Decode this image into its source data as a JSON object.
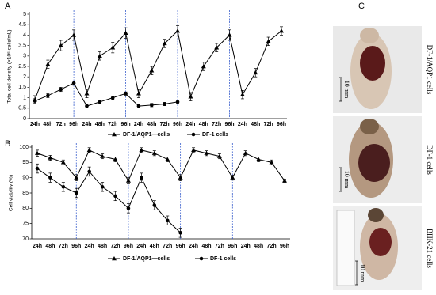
{
  "chart_data": [
    {
      "type": "line",
      "y_label": "Total cell density (×10⁶ cells/mL)",
      "categories": [
        "24h",
        "48h",
        "72h",
        "96h",
        "24h",
        "48h",
        "72h",
        "96h",
        "24h",
        "48h",
        "72h",
        "96h",
        "24h",
        "48h",
        "72h",
        "96h",
        "24h",
        "48h",
        "72h",
        "96h"
      ],
      "series": [
        {
          "name": "DF-1/AQP1—cells",
          "color": "#000000",
          "marker": "triangle",
          "values": [
            0.9,
            2.6,
            3.5,
            4.0,
            1.2,
            3.0,
            3.4,
            4.1,
            1.2,
            2.3,
            3.6,
            4.2,
            1.05,
            2.5,
            3.4,
            4.0,
            1.15,
            2.2,
            3.7,
            4.2
          ],
          "errors": [
            0.2,
            0.2,
            0.25,
            0.25,
            0.2,
            0.2,
            0.25,
            0.25,
            0.2,
            0.2,
            0.2,
            0.25,
            0.2,
            0.2,
            0.2,
            0.25,
            0.2,
            0.2,
            0.2,
            0.2
          ]
        },
        {
          "name": "DF-1 cells",
          "color": "#000000",
          "marker": "circle",
          "values": [
            0.85,
            1.1,
            1.4,
            1.7,
            0.6,
            0.8,
            1.0,
            1.2,
            0.6,
            0.65,
            0.7,
            0.8,
            null,
            null,
            null,
            null,
            null,
            null,
            null,
            null
          ],
          "errors": [
            0.1,
            0.1,
            0.1,
            0.1,
            0.08,
            0.08,
            0.08,
            0.08,
            0.08,
            0.08,
            0.08,
            0.08,
            null,
            null,
            null,
            null,
            null,
            null,
            null,
            null
          ]
        }
      ],
      "ylim": [
        0,
        5
      ],
      "yticks": [
        0,
        0.5,
        1,
        1.5,
        2,
        2.5,
        3,
        3.5,
        4,
        4.5,
        5
      ],
      "divider_color": "#3a5fcd"
    },
    {
      "type": "line",
      "y_label": "Cell viability (%)",
      "categories": [
        "24h",
        "48h",
        "72h",
        "96h",
        "24h",
        "48h",
        "72h",
        "96h",
        "24h",
        "48h",
        "72h",
        "96h",
        "24h",
        "48h",
        "72h",
        "96h",
        "24h",
        "48h",
        "72h",
        "96h"
      ],
      "series": [
        {
          "name": "DF-1/AQP1—cells",
          "color": "#000000",
          "marker": "triangle",
          "values": [
            98,
            96.5,
            95,
            90,
            99,
            97,
            96,
            89,
            99,
            98,
            96,
            90,
            99,
            98,
            97,
            90,
            98,
            96,
            95,
            89
          ],
          "errors": [
            1,
            0.8,
            0.8,
            1,
            0.8,
            0.8,
            0.8,
            1,
            0.8,
            0.8,
            0.8,
            1,
            0.8,
            0.8,
            0.8,
            0.8,
            0.8,
            0.8,
            0.8,
            0.5
          ]
        },
        {
          "name": "DF-1 cells",
          "color": "#000000",
          "marker": "circle",
          "values": [
            93,
            90,
            87,
            85,
            92,
            87,
            84,
            80,
            90,
            81,
            76,
            72,
            null,
            null,
            null,
            null,
            null,
            null,
            null,
            null
          ],
          "errors": [
            1.5,
            1.5,
            1.5,
            1.5,
            1.5,
            1.5,
            1.5,
            1.5,
            1.5,
            1.5,
            1.5,
            1.5,
            null,
            null,
            null,
            null,
            null,
            null,
            null,
            null
          ]
        }
      ],
      "ylim": [
        70,
        100
      ],
      "yticks": [
        70,
        75,
        80,
        85,
        90,
        95,
        100
      ],
      "divider_color": "#3a5fcd"
    }
  ],
  "panel_labels": [
    "A",
    "B",
    "C"
  ],
  "photos": [
    {
      "label": "DF-1/AQP1 cells",
      "scale": "10 mm"
    },
    {
      "label": "DF-1 cells",
      "scale": "10 mm"
    },
    {
      "label": "BHK-21 cells",
      "scale": "10 mm"
    }
  ]
}
